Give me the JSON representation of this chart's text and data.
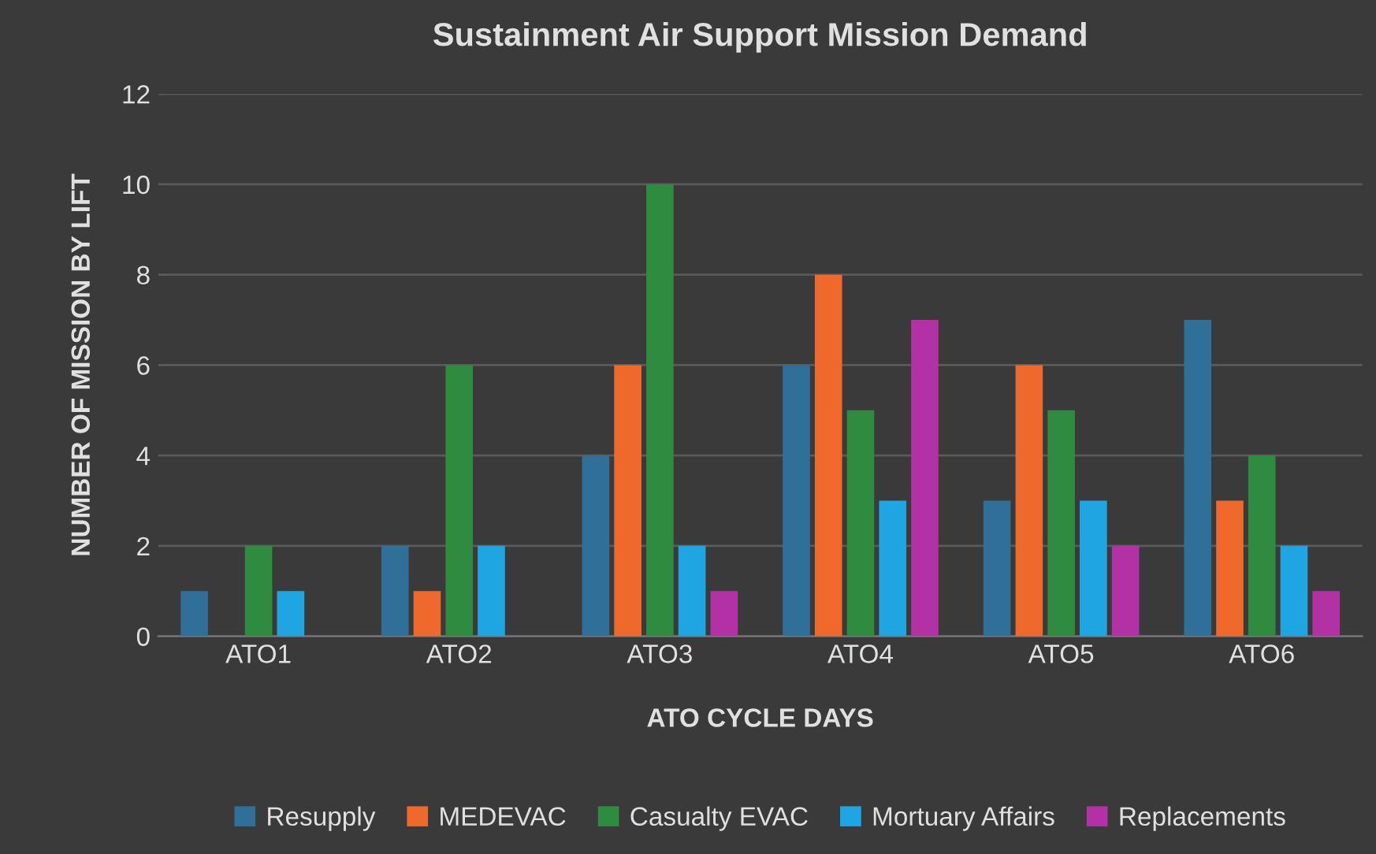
{
  "chart_data": {
    "type": "bar",
    "title": "Sustainment Air Support Mission Demand",
    "xlabel": "ATO CYCLE DAYS",
    "ylabel": "NUMBER OF MISSION BY LIFT",
    "categories": [
      "ATO1",
      "ATO2",
      "ATO3",
      "ATO4",
      "ATO5",
      "ATO6"
    ],
    "series": [
      {
        "name": "Resupply",
        "color": "#2f6f98",
        "values": [
          1,
          2,
          4,
          6,
          3,
          7
        ]
      },
      {
        "name": "MEDEVAC",
        "color": "#f0692c",
        "values": [
          0,
          1,
          6,
          8,
          6,
          3
        ]
      },
      {
        "name": "Casualty EVAC",
        "color": "#2e8b3f",
        "values": [
          2,
          6,
          10,
          5,
          5,
          4
        ]
      },
      {
        "name": "Mortuary Affairs",
        "color": "#1fa6e2",
        "values": [
          1,
          2,
          2,
          3,
          3,
          2
        ]
      },
      {
        "name": "Replacements",
        "color": "#b232a6",
        "values": [
          0,
          0,
          1,
          7,
          2,
          1
        ]
      }
    ],
    "ylim": [
      0,
      12
    ],
    "yticks": [
      0,
      2,
      4,
      6,
      8,
      10,
      12
    ],
    "grid": "y",
    "legend": "bottom"
  }
}
